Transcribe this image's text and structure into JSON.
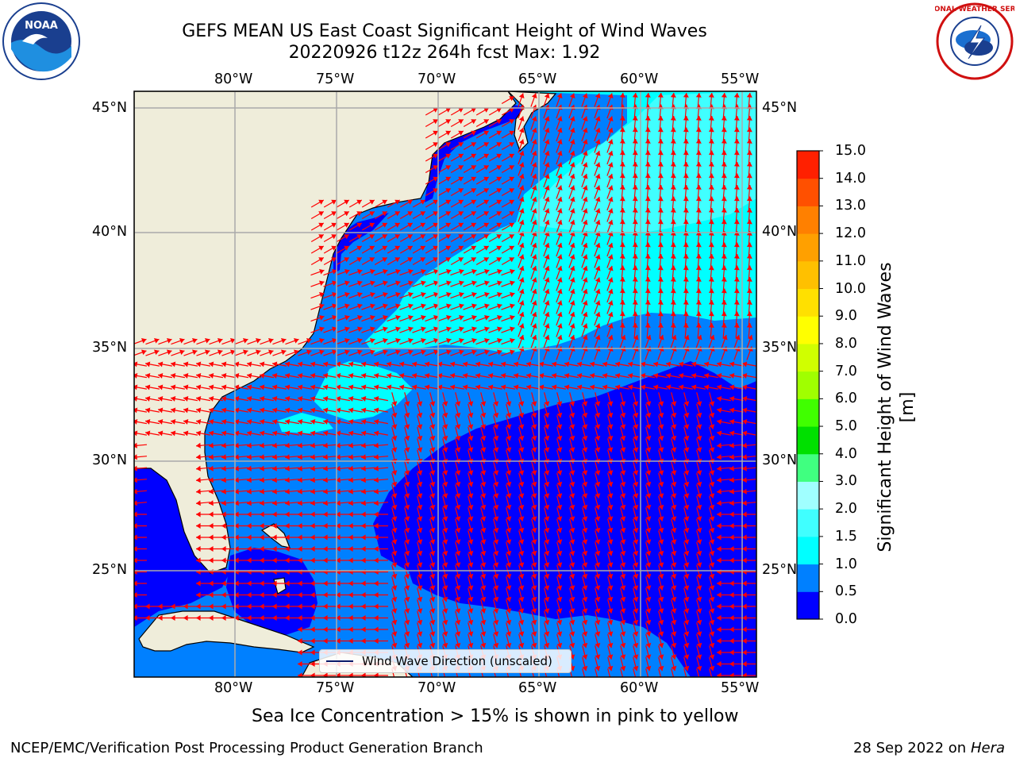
{
  "header": {
    "title_line1": "GEFS MEAN US East Coast Significant Height of Wind Waves",
    "title_line2": "20220926 t12z 264h fcst   Max: 1.92"
  },
  "logos": {
    "noaa_text": "NOAA",
    "nws_text": "NATIONAL WEATHER SERVICE"
  },
  "map": {
    "lon_labels": [
      "80°W",
      "75°W",
      "70°W",
      "65°W",
      "60°W",
      "55°W"
    ],
    "lat_labels": [
      "45°N",
      "40°N",
      "35°N",
      "30°N",
      "25°N"
    ],
    "legend_label": "Wind Wave Direction (unscaled)"
  },
  "colorbar": {
    "label": "Significant Height of Wind Waves [m]",
    "ticks": [
      "15.0",
      "14.0",
      "13.0",
      "12.0",
      "11.0",
      "10.0",
      "9.0",
      "8.0",
      "7.0",
      "6.0",
      "5.0",
      "4.0",
      "3.0",
      "2.0",
      "1.5",
      "1.0",
      "0.5",
      "0.0"
    ],
    "colors": [
      "#0000ff",
      "#0080ff",
      "#00ffff",
      "#40ffff",
      "#a0ffff",
      "#40ff80",
      "#00e000",
      "#40ff00",
      "#a0ff00",
      "#d0ff00",
      "#ffff00",
      "#ffe000",
      "#ffc000",
      "#ffa000",
      "#ff8000",
      "#ff5000",
      "#ff2000",
      "#ff0000"
    ]
  },
  "colors": {
    "land": "#efedda",
    "band_0_05": "#0000ff",
    "band_05_10": "#0080ff",
    "band_10_15": "#00ffff",
    "band_15_20": "#40ffff",
    "arrow": "#ff0000",
    "grid": "#aaaaaa"
  },
  "footer": {
    "note": "Sea Ice Concentration > 15% is shown in pink to yellow",
    "org": "NCEP/EMC/Verification Post Processing Product Generation Branch",
    "date": "28 Sep 2022 on",
    "machine": "Hera"
  }
}
